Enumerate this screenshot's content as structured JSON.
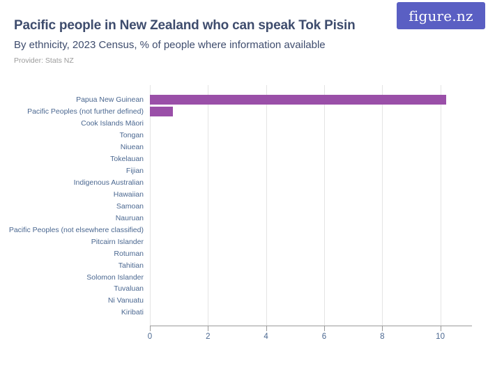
{
  "header": {
    "title": "Pacific people in New Zealand who can speak Tok Pisin",
    "subtitle": "By ethnicity, 2023 Census, % of people where information available",
    "provider": "Provider: Stats NZ",
    "logo_text": "figure.nz"
  },
  "colors": {
    "bar": "#9a4fa8",
    "title_text": "#3e4c6d",
    "axis_label_text": "#4a6790",
    "provider_text": "#9b9b9b",
    "logo_background": "#5a5fc3",
    "gridline": "#e4e4e4",
    "axis_line": "#999999"
  },
  "chart_data": {
    "type": "bar",
    "orientation": "horizontal",
    "title": "Pacific people in New Zealand who can speak Tok Pisin",
    "subtitle": "By ethnicity, 2023 Census, % of people where information available",
    "xlabel": "",
    "ylabel": "",
    "categories": [
      "Papua New Guinean",
      "Pacific Peoples (not further defined)",
      "Cook Islands Māori",
      "Tongan",
      "Niuean",
      "Tokelauan",
      "Fijian",
      "Indigenous Australian",
      "Hawaiian",
      "Samoan",
      "Nauruan",
      "Pacific Peoples (not elsewhere classified)",
      "Pitcairn Islander",
      "Rotuman",
      "Tahitian",
      "Solomon Islander",
      "Tuvaluan",
      "Ni Vanuatu",
      "Kiribati"
    ],
    "values": [
      10.2,
      0.8,
      0,
      0,
      0,
      0,
      0,
      0,
      0,
      0,
      0,
      0,
      0,
      0,
      0,
      0,
      0,
      0,
      0
    ],
    "xlim": [
      0,
      11.09
    ],
    "xticks": [
      0,
      2,
      4,
      6,
      8,
      10
    ],
    "grid": true,
    "legend": false
  }
}
